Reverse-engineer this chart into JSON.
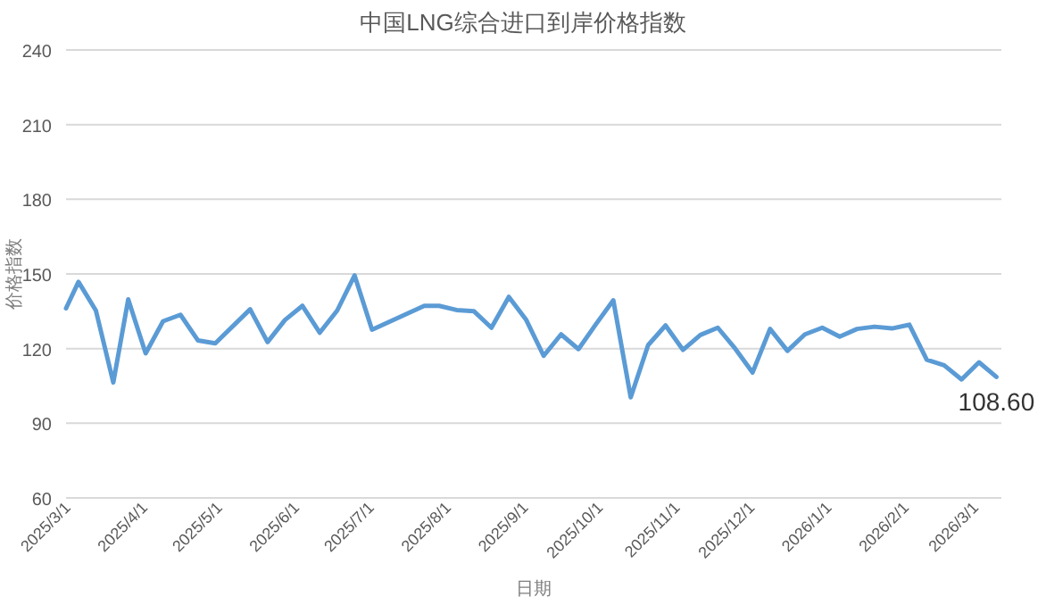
{
  "chart_data": {
    "type": "line",
    "title": "中国LNG综合进口到岸价格指数",
    "xlabel": "日期",
    "ylabel": "价格指数",
    "x": [
      "2025-03-01",
      "2025-03-06",
      "2025-03-13",
      "2025-03-20",
      "2025-03-26",
      "2025-04-02",
      "2025-04-09",
      "2025-04-16",
      "2025-04-23",
      "2025-04-30",
      "2025-05-14",
      "2025-05-21",
      "2025-05-28",
      "2025-06-04",
      "2025-06-11",
      "2025-06-18",
      "2025-06-25",
      "2025-07-02",
      "2025-07-23",
      "2025-07-29",
      "2025-08-05",
      "2025-08-12",
      "2025-08-19",
      "2025-08-26",
      "2025-09-02",
      "2025-09-09",
      "2025-09-16",
      "2025-09-23",
      "2025-09-30",
      "2025-10-07",
      "2025-10-14",
      "2025-10-21",
      "2025-10-28",
      "2025-11-04",
      "2025-11-11",
      "2025-11-18",
      "2025-11-25",
      "2025-12-02",
      "2025-12-09",
      "2025-12-16",
      "2025-12-23",
      "2025-12-30",
      "2026-01-06",
      "2026-01-13",
      "2026-01-20",
      "2026-01-27",
      "2026-02-03",
      "2026-02-10",
      "2026-02-17",
      "2026-02-24",
      "2026-03-03",
      "2026-03-10"
    ],
    "series": [
      {
        "color": "#5b9bd5",
        "values": [
          136.2,
          146.8,
          135.3,
          106.4,
          139.8,
          118.1,
          131.0,
          133.6,
          123.3,
          122.1,
          135.8,
          122.6,
          131.5,
          137.2,
          126.4,
          135.3,
          149.4,
          127.6,
          137.2,
          137.2,
          135.5,
          135.0,
          128.4,
          140.8,
          131.5,
          117.1,
          125.7,
          119.8,
          129.8,
          139.4,
          100.4,
          121.4,
          129.3,
          119.5,
          125.5,
          128.4,
          120.0,
          110.4,
          127.9,
          119.1,
          125.7,
          128.4,
          124.8,
          127.9,
          128.8,
          128.1,
          129.6,
          115.5,
          113.3,
          107.6,
          114.5,
          108.6
        ],
        "value_labels": [
          null,
          null,
          null,
          null,
          null,
          null,
          null,
          null,
          null,
          null,
          null,
          null,
          null,
          null,
          null,
          null,
          null,
          null,
          null,
          null,
          null,
          null,
          null,
          null,
          null,
          null,
          null,
          null,
          null,
          null,
          null,
          null,
          null,
          null,
          null,
          null,
          null,
          null,
          null,
          null,
          null,
          null,
          null,
          null,
          null,
          null,
          null,
          null,
          null,
          null,
          null,
          "108.60"
        ]
      }
    ],
    "xlim": [
      "2025-03-01",
      "2026-03-12"
    ],
    "xticks": [
      {
        "value": "2025-03-01",
        "label": "2025/3/1"
      },
      {
        "value": "2025-04-01",
        "label": "2025/4/1"
      },
      {
        "value": "2025-05-01",
        "label": "2025/5/1"
      },
      {
        "value": "2025-06-01",
        "label": "2025/6/1"
      },
      {
        "value": "2025-07-01",
        "label": "2025/7/1"
      },
      {
        "value": "2025-08-01",
        "label": "2025/8/1"
      },
      {
        "value": "2025-09-01",
        "label": "2025/9/1"
      },
      {
        "value": "2025-10-01",
        "label": "2025/10/1"
      },
      {
        "value": "2025-11-01",
        "label": "2025/11/1"
      },
      {
        "value": "2025-12-01",
        "label": "2025/12/1"
      },
      {
        "value": "2026-01-01",
        "label": "2026/1/1"
      },
      {
        "value": "2026-02-01",
        "label": "2026/2/1"
      },
      {
        "value": "2026-03-01",
        "label": "2026/3/1"
      }
    ],
    "ylim": [
      60,
      240
    ],
    "yticks": [
      60,
      90,
      120,
      150,
      180,
      210,
      240
    ],
    "grid": "y",
    "marker": "none",
    "line_style": "solid"
  }
}
